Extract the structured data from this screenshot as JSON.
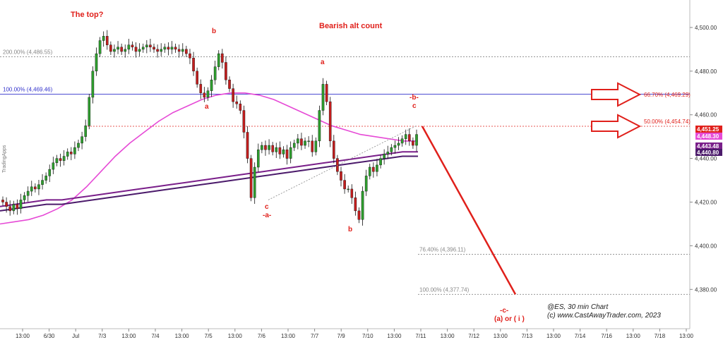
{
  "chart_data": {
    "type": "candlestick",
    "symbol_caption": "@ES, 30 min Chart",
    "copyright": "(c) www.CastAwayTrader.com, 2023",
    "side_badge": "TradingApps",
    "annotations": {
      "top_note": "The top?",
      "count_title": "Bearish alt count",
      "wave_labels": [
        "b",
        "a",
        "a",
        "c",
        "-a-",
        "b",
        "-b-",
        "c",
        "-c-",
        "(a) or ( i )"
      ]
    },
    "y_axis": {
      "ylim": [
        4362,
        4510
      ],
      "ticks": [
        "4,500.00",
        "4,480.00",
        "4,460.00",
        "4,440.00",
        "4,420.00",
        "4,400.00",
        "4,380.00"
      ],
      "tick_values": [
        4500,
        4480,
        4460,
        4440,
        4420,
        4400,
        4380
      ]
    },
    "x_axis": {
      "ticks": [
        "13:00",
        "6/30",
        "Jul",
        "7/3",
        "13:00",
        "7/4",
        "13:00",
        "7/5",
        "13:00",
        "7/6",
        "13:00",
        "7/7",
        "7/9",
        "7/10",
        "13:00",
        "7/11",
        "13:00",
        "7/12",
        "13:00",
        "7/13",
        "13:00",
        "7/14",
        "7/16",
        "13:00",
        "7/18",
        "13:00"
      ]
    },
    "fib_levels": [
      {
        "label": "200.00% (4,486.55)",
        "value": 4486.55,
        "color": "#888888"
      },
      {
        "label": "100.00% (4,469.46)",
        "value": 4469.46,
        "color": "#3333cc"
      },
      {
        "label": "66.70% (4,469.29)",
        "value": 4469.29,
        "color": "#e0201b"
      },
      {
        "label": "50.00% (4,454.74)",
        "value": 4454.74,
        "color": "#e0201b"
      },
      {
        "label": "76.40% (4,396.11)",
        "value": 4396.11,
        "color": "#888888"
      },
      {
        "label": "100.00% (4,377.74)",
        "value": 4377.74,
        "color": "#888888"
      }
    ],
    "price_badges": [
      {
        "text": "4,451.25",
        "value": 4451.25,
        "color": "#e0201b"
      },
      {
        "text": "4,448.30",
        "value": 4448.3,
        "color": "#e64ad6"
      },
      {
        "text": "4,443.48",
        "value": 4443.48,
        "color": "#7a1f8a"
      },
      {
        "text": "4,440.80",
        "value": 4440.8,
        "color": "#4b1a6b"
      }
    ],
    "close_prices": [
      4420,
      4418,
      4416,
      4419,
      4417,
      4421,
      4423,
      4425,
      4427,
      4426,
      4428,
      4430,
      4432,
      4435,
      4438,
      4440,
      4439,
      4441,
      4443,
      4442,
      4445,
      4447,
      4450,
      4455,
      4468,
      4480,
      4488,
      4494,
      4496,
      4492,
      4489,
      4490,
      4491,
      4489,
      4490,
      4492,
      4491,
      4489,
      4490,
      4491,
      4492,
      4491,
      4490,
      4489,
      4490,
      4491,
      4490,
      4491,
      4490,
      4489,
      4490,
      4488,
      4486,
      4480,
      4474,
      4470,
      4468,
      4471,
      4476,
      4482,
      4488,
      4484,
      4476,
      4472,
      4466,
      4465,
      4462,
      4452,
      4440,
      4422,
      4436,
      4444,
      4446,
      4444,
      4446,
      4443,
      4445,
      4442,
      4444,
      4440,
      4445,
      4447,
      4449,
      4446,
      4448,
      4448,
      4443,
      4448,
      4462,
      4474,
      4466,
      4448,
      4440,
      4434,
      4430,
      4426,
      4426,
      4422,
      4416,
      4412,
      4425,
      4432,
      4436,
      4434,
      4437,
      4440,
      4442,
      4443,
      4445,
      4446,
      4447,
      4449,
      4451,
      4448,
      4446,
      4451
    ],
    "series": [
      {
        "name": "",
        "color": "#e64ad6",
        "values": [
          4410,
          4411,
          4412,
          4414,
          4417,
          4421,
          4427,
          4434,
          4441,
          4447,
          4452,
          4457,
          4461,
          4464,
          4467,
          4469,
          4470,
          4470,
          4469,
          4467,
          4464,
          4461,
          4458,
          4455,
          4453,
          4451,
          4450,
          4449,
          4448,
          4448
        ]
      },
      {
        "name": "",
        "color": "#7a1f8a",
        "values": [
          4418,
          4419,
          4420,
          4421,
          4421,
          4422,
          4423,
          4424,
          4425,
          4426,
          4427,
          4428,
          4429,
          4430,
          4431,
          4432,
          4433,
          4434,
          4435,
          4436,
          4437,
          4438,
          4439,
          4440,
          4441,
          4442,
          4443,
          4443
        ]
      },
      {
        "name": "",
        "color": "#4b1a6b",
        "values": [
          4416,
          4417,
          4418,
          4419,
          4419,
          4420,
          4421,
          4422,
          4423,
          4424,
          4425,
          4426,
          4427,
          4428,
          4429,
          4430,
          4431,
          4432,
          4433,
          4434,
          4435,
          4436,
          4437,
          4438,
          4439,
          4440,
          4441,
          4441
        ]
      }
    ],
    "projection": {
      "from": 4454.74,
      "to": 4377.74,
      "color": "#e0201b"
    },
    "colors": {
      "up": "#2e9e2e",
      "down": "#c41e1e",
      "wick": "#111111"
    }
  }
}
